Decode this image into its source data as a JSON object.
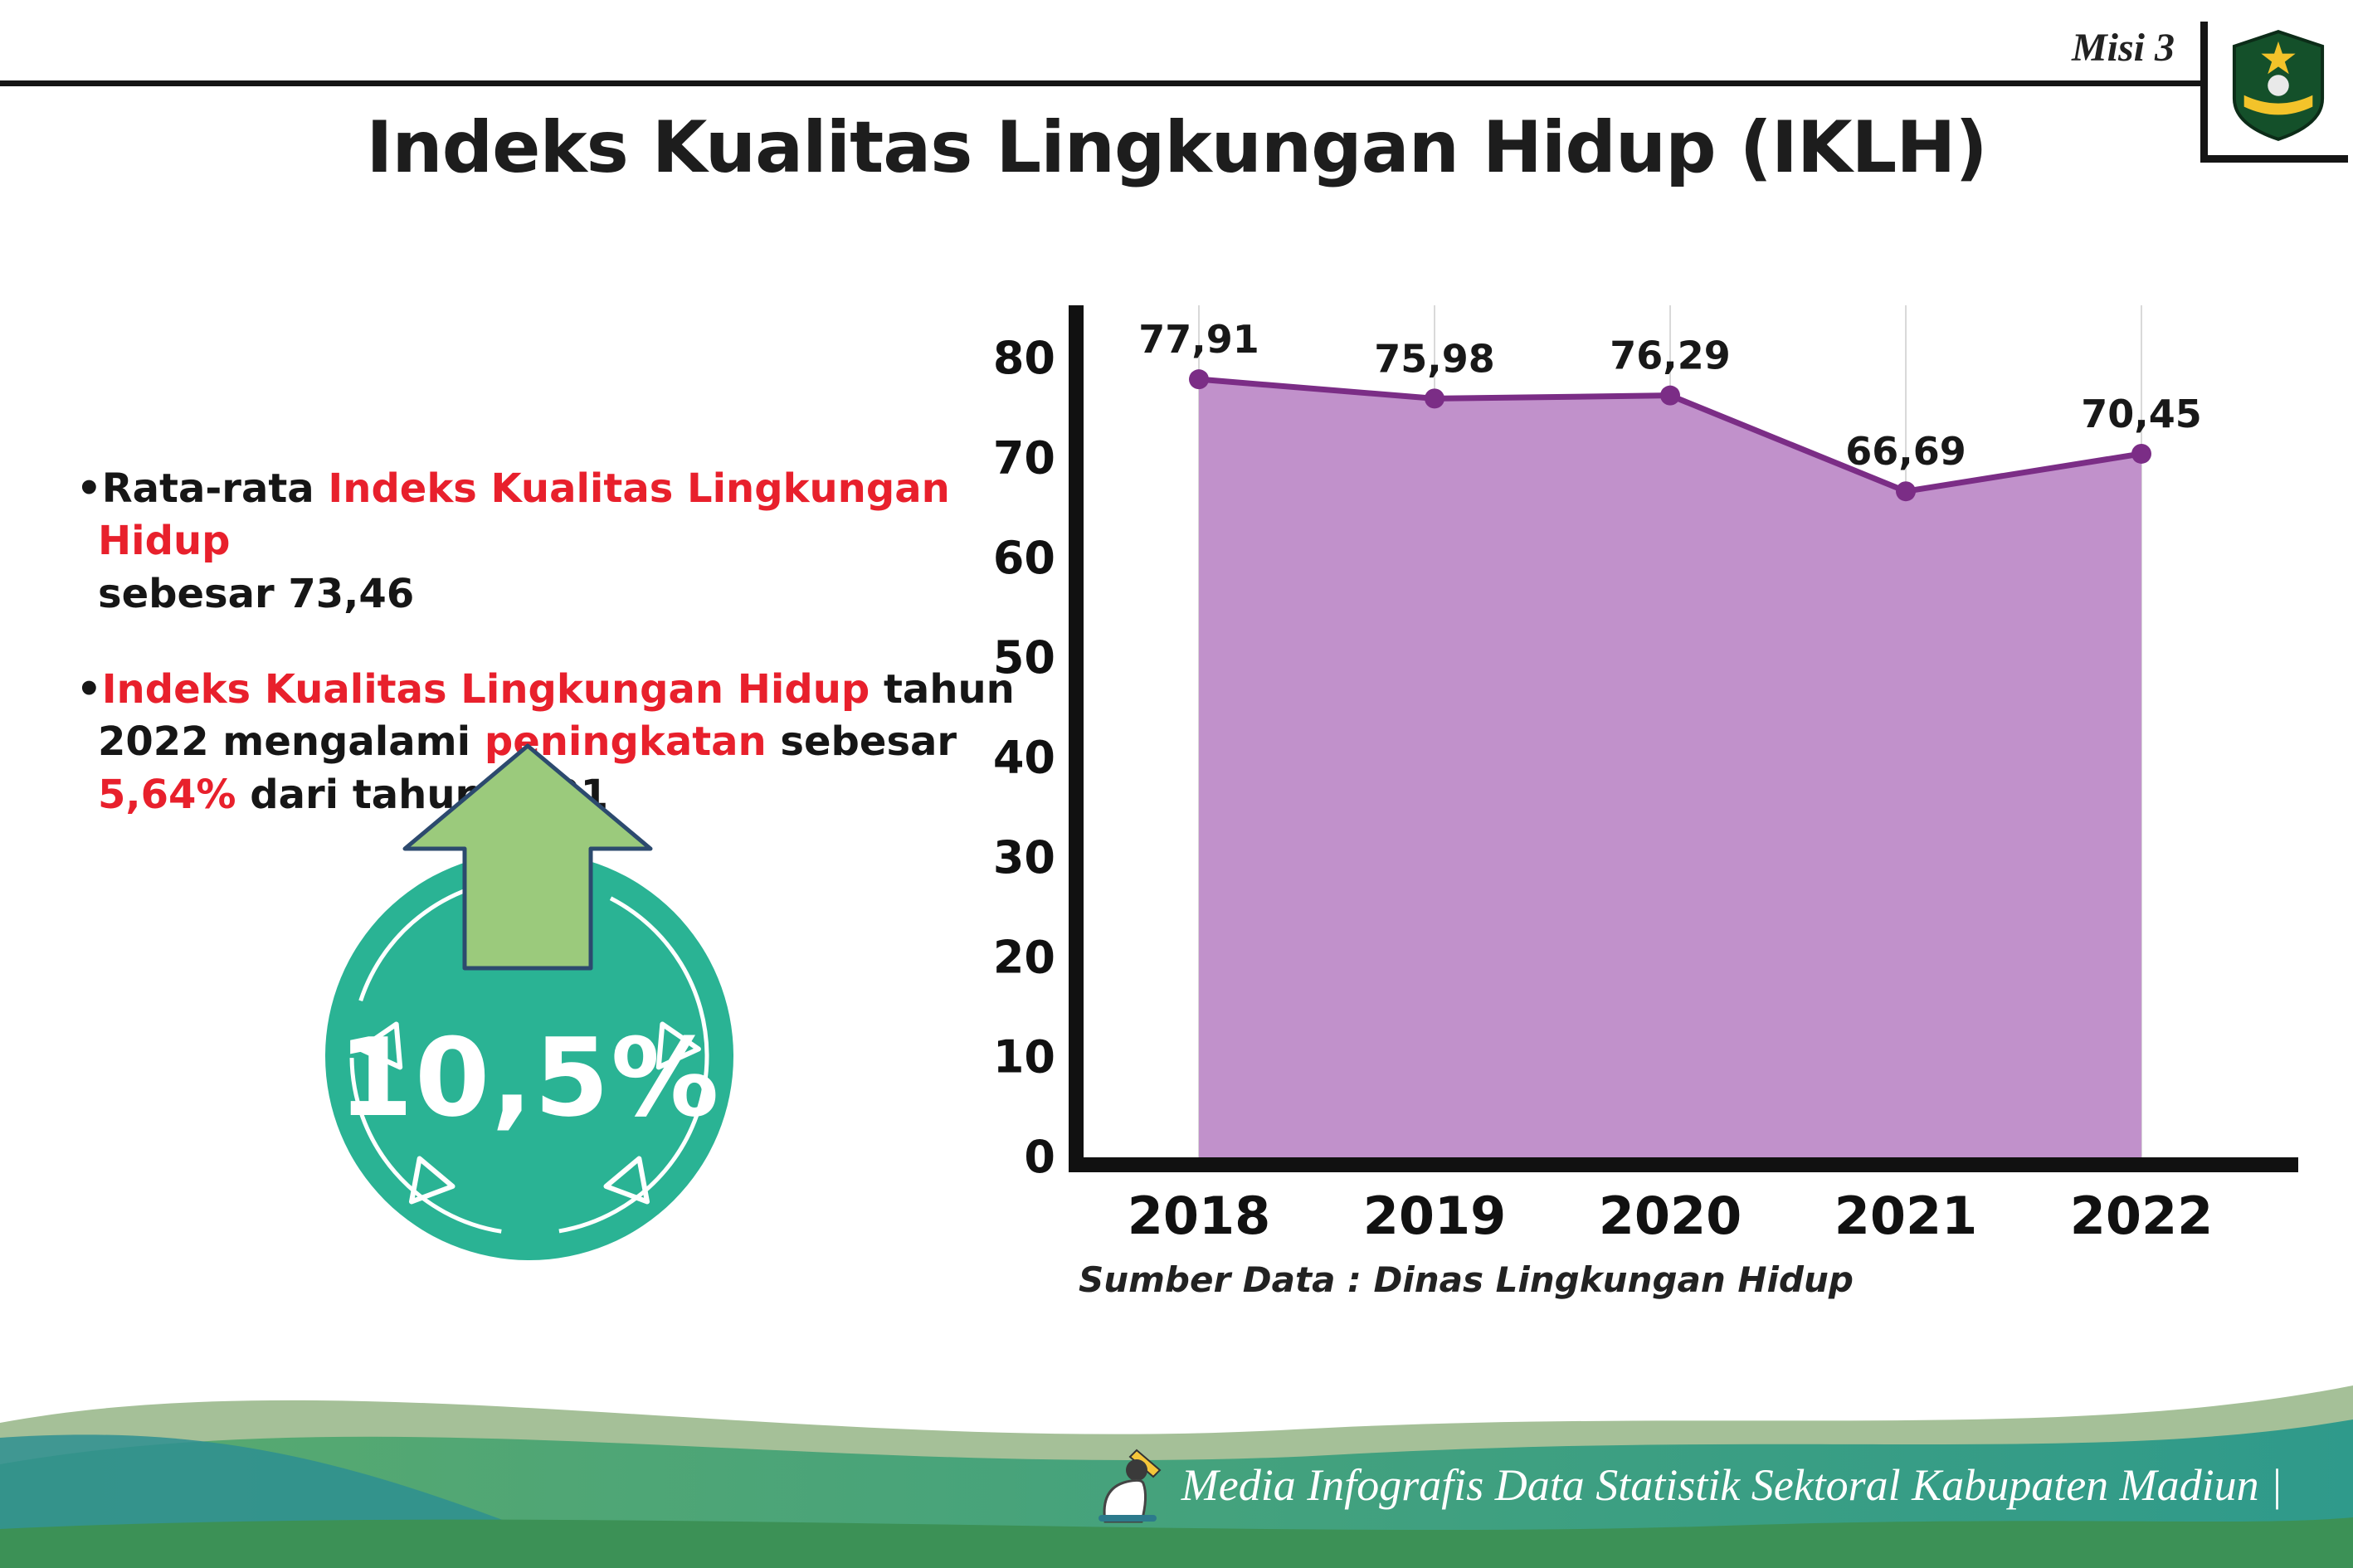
{
  "header": {
    "misi": "Misi 3",
    "title": "Indeks Kualitas Lingkungan Hidup (IKLH)"
  },
  "bullets": {
    "marker": "•",
    "items": [
      {
        "segments": [
          {
            "text": "Rata-rata ",
            "red": false
          },
          {
            "text": "Indeks Kualitas Lingkungan Hidup",
            "red": true
          },
          {
            "text": "sebesar 73,46",
            "red": false
          }
        ]
      },
      {
        "segments": [
          {
            "text": "Indeks Kualitas Lingkungan Hidup",
            "red": true
          },
          {
            "text": " tahun 2022 mengalami ",
            "red": false
          },
          {
            "text": "peningkatan",
            "red": true
          },
          {
            "text": " sebesar ",
            "red": false
          },
          {
            "text": "5,64%",
            "red": true
          },
          {
            "text": " dari tahun 2021",
            "red": false
          }
        ]
      }
    ]
  },
  "badge": {
    "value": "10,5%"
  },
  "chart_data": {
    "type": "area",
    "title": "Indeks Kualitas Lingkungan Hidup (IKLH)",
    "categories": [
      "2018",
      "2019",
      "2020",
      "2021",
      "2022"
    ],
    "values": [
      77.91,
      75.98,
      76.29,
      66.69,
      70.45
    ],
    "point_labels": [
      "77,91",
      "75,98",
      "76,29",
      "66,69",
      "70,45"
    ],
    "ylim": [
      0,
      80
    ],
    "yticks": [
      0,
      10,
      20,
      30,
      40,
      50,
      60,
      70,
      80
    ],
    "grid": "vertical-light",
    "legend": "none",
    "source": "Sumber Data : Dinas Lingkungan Hidup"
  },
  "footer": {
    "text": "Media Infografis Data Statistik Sektoral Kabupaten Madiun |"
  },
  "icons": {
    "up_arrow": "up-arrow-icon",
    "mascot": "writer-mascot-icon",
    "logo": "kabupaten-madiun-crest"
  },
  "colors": {
    "red_accent": "#e8202c",
    "area_fill": "#c191cb",
    "line": "#7b2d86",
    "badge_teal": "#2ab394",
    "arrow_green": "#9bca7c",
    "axis_black": "#111111",
    "gridline": "#d9d9d9"
  }
}
